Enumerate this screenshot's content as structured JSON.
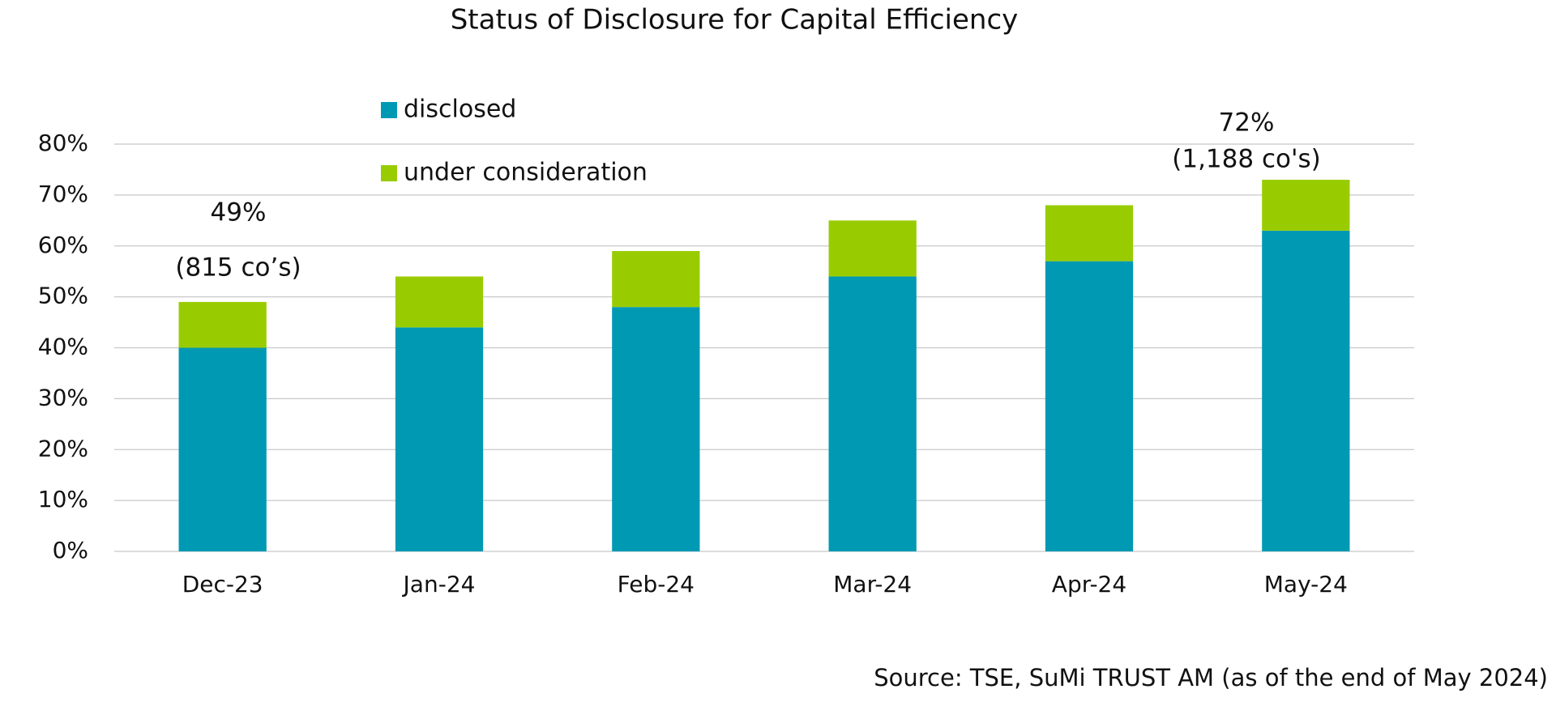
{
  "chart_data": {
    "type": "stacked_bar",
    "title": "Status of Disclosure for Capital Efficiency",
    "categories": [
      "Dec-23",
      "Jan-24",
      "Feb-24",
      "Mar-24",
      "Apr-24",
      "May-24"
    ],
    "series": [
      {
        "name": "disclosed",
        "color": "#0099b4",
        "values": [
          40,
          44,
          48,
          54,
          57,
          63
        ]
      },
      {
        "name": "under consideration",
        "color": "#99cc00",
        "values": [
          9,
          10,
          11,
          11,
          11,
          10
        ]
      }
    ],
    "ylim": [
      0,
      80
    ],
    "yticks": [
      {
        "value": 0,
        "label": "0%"
      },
      {
        "value": 10,
        "label": "10%"
      },
      {
        "value": 20,
        "label": "20%"
      },
      {
        "value": 30,
        "label": "30%"
      },
      {
        "value": 40,
        "label": "40%"
      },
      {
        "value": 50,
        "label": "50%"
      },
      {
        "value": 60,
        "label": "60%"
      },
      {
        "value": 70,
        "label": "70%"
      },
      {
        "value": 80,
        "label": "80%"
      }
    ],
    "grid": true,
    "annotations": [
      "49%",
      "(815 co’s)",
      "72%",
      "(1,188 co's)"
    ],
    "source": "Source: TSE, SuMi TRUST AM (as of the end of May 2024)"
  }
}
